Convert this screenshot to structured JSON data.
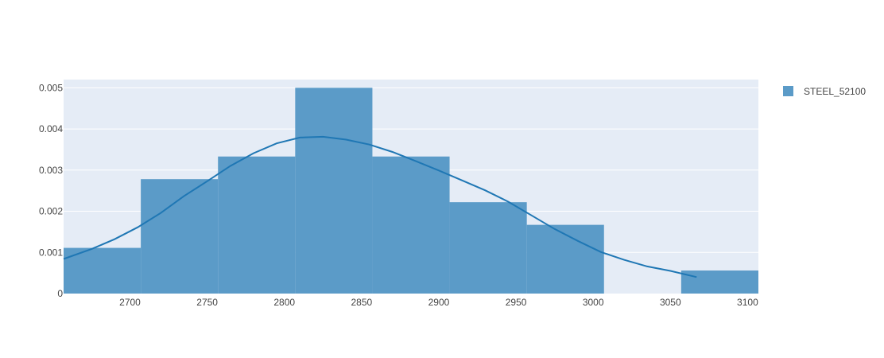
{
  "chart_data": {
    "type": "histogram",
    "title": "",
    "xlabel": "",
    "ylabel": "",
    "xlim": [
      2657,
      3107
    ],
    "ylim": [
      0,
      0.0052
    ],
    "x_ticks": [
      2700,
      2750,
      2800,
      2850,
      2900,
      2950,
      3000,
      3050,
      3100
    ],
    "y_ticks": [
      0,
      0.001,
      0.002,
      0.003,
      0.004,
      0.005
    ],
    "y_tick_labels": [
      "0",
      "0.001",
      "0.002",
      "0.003",
      "0.004",
      "0.005"
    ],
    "grid": "horizontal",
    "legend_position": "top-right",
    "colors": {
      "bars": "#5b9bc8",
      "curve": "#1f77b4",
      "plot_bg": "#e5ecf6",
      "grid": "#ffffff"
    },
    "series": [
      {
        "name": "STEEL_52100",
        "kind": "histogram",
        "bins": [
          {
            "x0": 2657,
            "x1": 2707,
            "density": 0.00111
          },
          {
            "x0": 2707,
            "x1": 2757,
            "density": 0.00278
          },
          {
            "x0": 2757,
            "x1": 2807,
            "density": 0.00333
          },
          {
            "x0": 2807,
            "x1": 2857,
            "density": 0.005
          },
          {
            "x0": 2857,
            "x1": 2907,
            "density": 0.00333
          },
          {
            "x0": 2907,
            "x1": 2957,
            "density": 0.00222
          },
          {
            "x0": 2957,
            "x1": 3007,
            "density": 0.00167
          },
          {
            "x0": 3007,
            "x1": 3057,
            "density": 0
          },
          {
            "x0": 3057,
            "x1": 3107,
            "density": 0.00056
          }
        ]
      },
      {
        "kind": "kde",
        "points": [
          [
            2657,
            0.00084
          ],
          [
            2675,
            0.00108
          ],
          [
            2690,
            0.00132
          ],
          [
            2705,
            0.00161
          ],
          [
            2720,
            0.00196
          ],
          [
            2735,
            0.00237
          ],
          [
            2750,
            0.00273
          ],
          [
            2765,
            0.0031
          ],
          [
            2780,
            0.00341
          ],
          [
            2795,
            0.00365
          ],
          [
            2810,
            0.00379
          ],
          [
            2825,
            0.00381
          ],
          [
            2840,
            0.00374
          ],
          [
            2855,
            0.00362
          ],
          [
            2870,
            0.00344
          ],
          [
            2885,
            0.00322
          ],
          [
            2900,
            0.00299
          ],
          [
            2915,
            0.00275
          ],
          [
            2930,
            0.00251
          ],
          [
            2945,
            0.00223
          ],
          [
            2960,
            0.0019
          ],
          [
            2975,
            0.00157
          ],
          [
            2990,
            0.00128
          ],
          [
            3005,
            0.00101
          ],
          [
            3020,
            0.00082
          ],
          [
            3035,
            0.00066
          ],
          [
            3050,
            0.00055
          ],
          [
            3067,
            0.0004
          ]
        ]
      }
    ]
  }
}
